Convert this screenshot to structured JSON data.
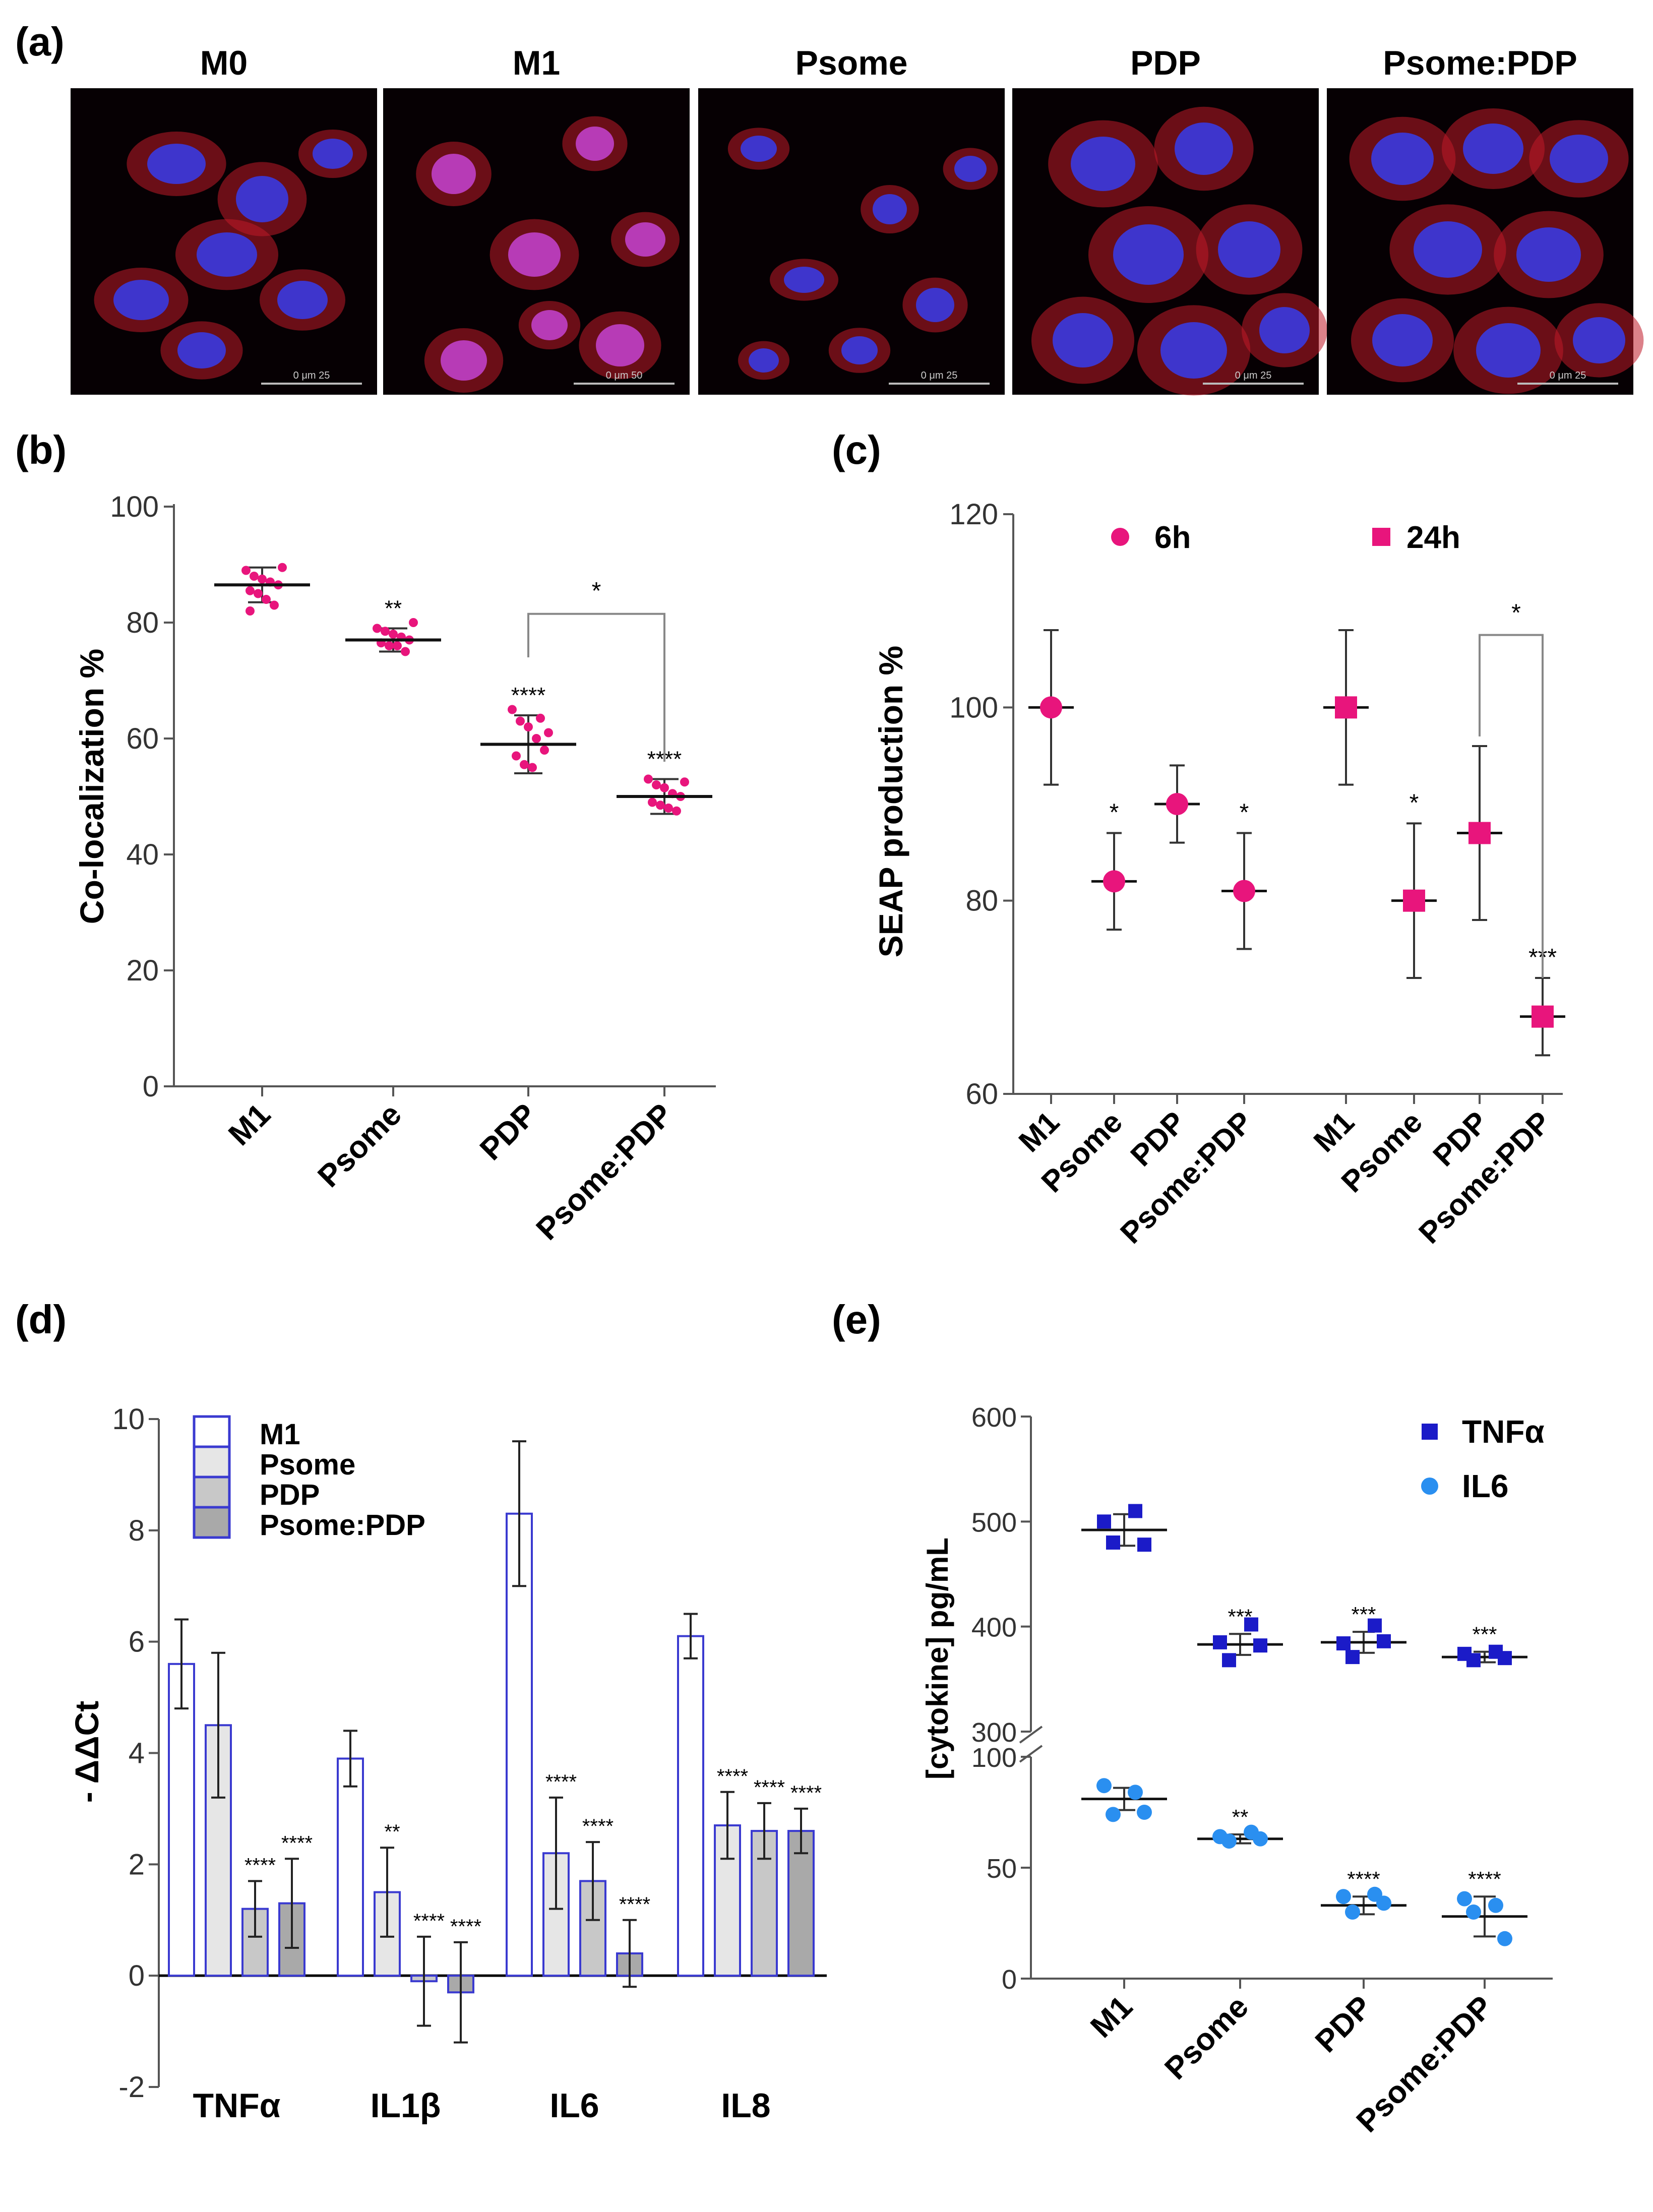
{
  "panel_labels": [
    "(a)",
    "(b)",
    "(c)",
    "(d)",
    "(e)"
  ],
  "micrographs": {
    "titles": [
      "M0",
      "M1",
      "Psome",
      "PDP",
      "Psome:PDP"
    ],
    "scale_labels": [
      "0  μm  25",
      "0  μm  50",
      "0  μm  25",
      "0  μm  25",
      "0  μm  25"
    ]
  },
  "colors": {
    "magenta": "#e8157c",
    "dark_blue": "#1b1bc8",
    "light_blue": "#2a8ff0",
    "bar_outline": "#3a3ad0",
    "nucleus": "#3a3ae0",
    "cytoplasm": "#c01a28"
  },
  "chart_data": [
    {
      "id": "b",
      "type": "scatter",
      "ylabel": "Co-localization %",
      "categories": [
        "M1",
        "Psome",
        "PDP",
        "Psome:PDP"
      ],
      "ylim": [
        0,
        100
      ],
      "yticks": [
        0,
        20,
        40,
        60,
        80,
        100
      ],
      "means": [
        86.5,
        77,
        59,
        50
      ],
      "sd": [
        3,
        2,
        5,
        3
      ],
      "points": [
        [
          89,
          88,
          87.5,
          87,
          86.5,
          85.5,
          85,
          84,
          83,
          89.5,
          82
        ],
        [
          79,
          78.5,
          78,
          77.5,
          77,
          76.5,
          76,
          76,
          75,
          80
        ],
        [
          65,
          63,
          62,
          60,
          58,
          57,
          55.5,
          55,
          63.5,
          61
        ],
        [
          53,
          52,
          51.5,
          50.5,
          50,
          49,
          48.5,
          48,
          47.5,
          52.5
        ]
      ],
      "significance": [
        "",
        "**",
        "****",
        "****"
      ],
      "bracket": {
        "from": 2,
        "to": 3,
        "label": "*"
      }
    },
    {
      "id": "c",
      "type": "scatter",
      "ylabel": "SEAP production %",
      "legend": [
        "6h",
        "24h"
      ],
      "categories": [
        "M1",
        "Psome",
        "PDP",
        "Psome:PDP",
        "M1",
        "Psome",
        "PDP",
        "Psome:PDP"
      ],
      "ylim": [
        60,
        120
      ],
      "yticks": [
        60,
        80,
        100,
        120
      ],
      "series": [
        {
          "name": "6h",
          "values": [
            100,
            82,
            90,
            81
          ],
          "sd": [
            8,
            5,
            4,
            6
          ],
          "significance": [
            "",
            "*",
            "",
            "*"
          ]
        },
        {
          "name": "24h",
          "values": [
            100,
            80,
            87,
            68
          ],
          "sd": [
            8,
            8,
            9,
            4
          ],
          "significance": [
            "",
            "*",
            "",
            "***"
          ]
        }
      ],
      "bracket": {
        "label": "*"
      }
    },
    {
      "id": "d",
      "type": "bar",
      "ylabel": "- ΔΔCt",
      "categories": [
        "TNFα",
        "IL1β",
        "IL6",
        "IL8"
      ],
      "ylim": [
        -2,
        10
      ],
      "yticks": [
        -2,
        0,
        2,
        4,
        6,
        8,
        10
      ],
      "series": [
        {
          "name": "M1",
          "fill": "#ffffff",
          "values": [
            5.6,
            3.9,
            8.3,
            6.1
          ],
          "err": [
            0.8,
            0.5,
            1.3,
            0.4
          ],
          "significance": [
            "",
            "",
            "",
            ""
          ]
        },
        {
          "name": "Psome",
          "fill": "#e6e6e6",
          "values": [
            4.5,
            1.5,
            2.2,
            2.7
          ],
          "err": [
            1.3,
            0.8,
            1.0,
            0.6
          ],
          "significance": [
            "",
            "**",
            "****",
            "****"
          ]
        },
        {
          "name": "PDP",
          "fill": "#c8c8c8",
          "values": [
            1.2,
            -0.1,
            1.7,
            2.6
          ],
          "err": [
            0.5,
            0.8,
            0.7,
            0.5
          ],
          "significance": [
            "****",
            "****",
            "****",
            "****"
          ]
        },
        {
          "name": "Psome:PDP",
          "fill": "#a9a9a9",
          "values": [
            1.3,
            -0.3,
            0.4,
            2.6
          ],
          "err": [
            0.8,
            0.9,
            0.6,
            0.4
          ],
          "significance": [
            "****",
            "****",
            "****",
            "****"
          ]
        }
      ]
    },
    {
      "id": "e",
      "type": "scatter",
      "ylabel": "[cytokine] pg/mL",
      "categories": [
        "M1",
        "Psome",
        "PDP",
        "Psome:PDP"
      ],
      "legend": [
        "TNFα",
        "IL6"
      ],
      "axis_breaks": {
        "upper": {
          "range": [
            300,
            600
          ],
          "ticks": [
            300,
            400,
            500,
            600
          ]
        },
        "lower": {
          "range": [
            0,
            100
          ],
          "ticks": [
            0,
            50,
            100
          ]
        }
      },
      "series": [
        {
          "name": "TNFα",
          "means": [
            492,
            383,
            385,
            371
          ],
          "sd": [
            15,
            10,
            10,
            5
          ],
          "points": [
            [
              500,
              510,
              480,
              478
            ],
            [
              385,
              402,
              368,
              382
            ],
            [
              384,
              401,
              371,
              386
            ],
            [
              374,
              376,
              368,
              370
            ]
          ],
          "significance": [
            "",
            "***",
            "***",
            "***"
          ]
        },
        {
          "name": "IL6",
          "means": [
            81,
            63,
            33,
            28
          ],
          "sd": [
            5,
            2,
            4,
            9
          ],
          "points": [
            [
              87,
              84,
              74,
              75
            ],
            [
              64,
              66,
              62,
              63
            ],
            [
              37,
              38,
              30,
              34
            ],
            [
              36,
              33,
              30,
              18
            ]
          ],
          "significance": [
            "",
            "**",
            "****",
            "****"
          ]
        }
      ]
    }
  ]
}
